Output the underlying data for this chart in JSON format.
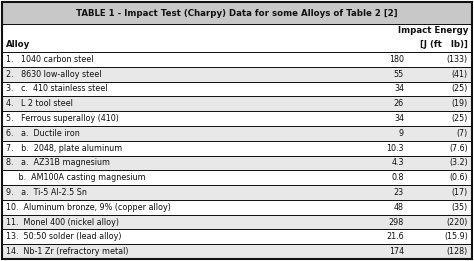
{
  "title": "TABLE 1 - Impact Test (Charpy) Data for some Alloys of Table 2 [2]",
  "col_header_left": "Alloy",
  "col_header_right_line1": "Impact Energy",
  "col_header_right_line2": "[J (ft   lb)]",
  "rows": [
    {
      "alloy": "1.   1040 carbon steel",
      "J": "180",
      "ftlb": "(133)"
    },
    {
      "alloy": "2.   8630 low-alloy steel",
      "J": "55",
      "ftlb": "(41)"
    },
    {
      "alloy": "3.   c.  410 stainless steel",
      "J": "34",
      "ftlb": "(25)"
    },
    {
      "alloy": "4.   L 2 tool steel",
      "J": "26",
      "ftlb": "(19)"
    },
    {
      "alloy": "5.   Ferrous superalloy (410)",
      "J": "34",
      "ftlb": "(25)"
    },
    {
      "alloy": "6.   a.  Ductile iron",
      "J": "9",
      "ftlb": "(7)"
    },
    {
      "alloy": "7.   b.  2048, plate aluminum",
      "J": "10.3",
      "ftlb": "(7.6)"
    },
    {
      "alloy": "8.   a.  AZ31B magnesium",
      "J": "4.3",
      "ftlb": "(3.2)"
    },
    {
      "alloy": "     b.  AM100A casting magnesium",
      "J": "0.8",
      "ftlb": "(0.6)"
    },
    {
      "alloy": "9.   a.  Ti-5 Al-2.5 Sn",
      "J": "23",
      "ftlb": "(17)"
    },
    {
      "alloy": "10.  Aluminum bronze, 9% (copper alloy)",
      "J": "48",
      "ftlb": "(35)"
    },
    {
      "alloy": "11.  Monel 400 (nickel alloy)",
      "J": "298",
      "ftlb": "(220)"
    },
    {
      "alloy": "13.  50:50 solder (lead alloy)",
      "J": "21.6",
      "ftlb": "(15.9)"
    },
    {
      "alloy": "14.  Nb-1 Zr (refractory metal)",
      "J": "174",
      "ftlb": "(128)"
    }
  ],
  "header_bg": "#c8c8c8",
  "row_bg_white": "#ffffff",
  "line_color": "#111111",
  "text_color": "#111111",
  "title_fontsize": 6.2,
  "header_fontsize": 6.2,
  "row_fontsize": 5.8
}
